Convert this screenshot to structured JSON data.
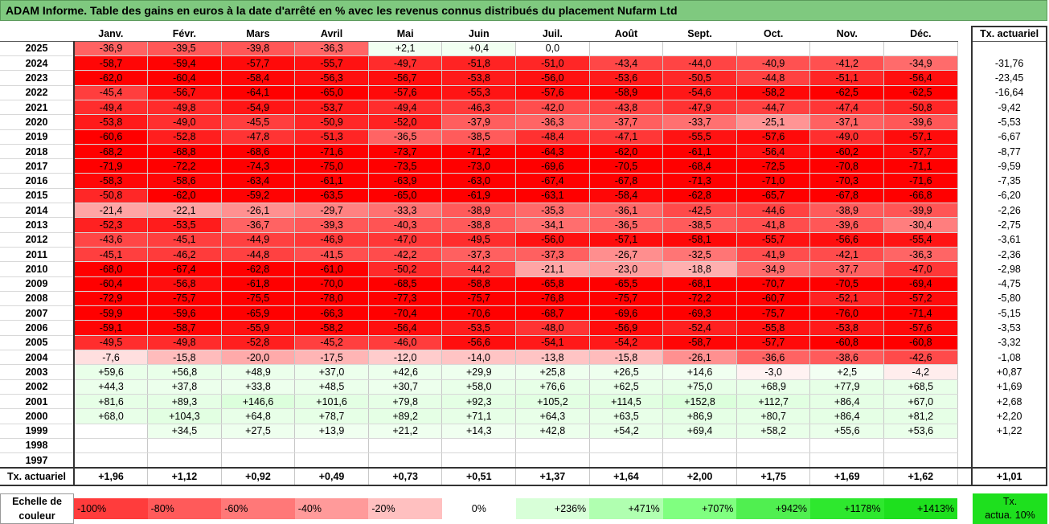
{
  "title": "ADAM Informe. Table des gains en euros à la date d'arrêté en % avec les revenus connus distribués du placement Nufarm Ltd",
  "colors": {
    "title_bg": "#7fc97f",
    "negative": "#ff0000",
    "positive": "#00ee00"
  },
  "chart_data": {
    "type": "heatmap",
    "months": [
      "Janv.",
      "Févr.",
      "Mars",
      "Avril",
      "Mai",
      "Juin",
      "Juil.",
      "Août",
      "Sept.",
      "Oct.",
      "Nov.",
      "Déc."
    ],
    "actuarial_header": "Tx. actuariel",
    "rows": [
      {
        "year": "2025",
        "values": [
          "-36,9",
          "-39,5",
          "-39,8",
          "-36,3",
          "+2,1",
          "+0,4",
          "0,0",
          "",
          "",
          "",
          "",
          ""
        ],
        "actuarial": ""
      },
      {
        "year": "2024",
        "values": [
          "-58,7",
          "-59,4",
          "-57,7",
          "-55,7",
          "-49,7",
          "-51,8",
          "-51,0",
          "-43,4",
          "-44,0",
          "-40,9",
          "-41,2",
          "-34,9"
        ],
        "actuarial": "-31,76"
      },
      {
        "year": "2023",
        "values": [
          "-62,0",
          "-60,4",
          "-58,4",
          "-56,3",
          "-56,7",
          "-53,8",
          "-56,0",
          "-53,6",
          "-50,5",
          "-44,8",
          "-51,1",
          "-56,4"
        ],
        "actuarial": "-23,45"
      },
      {
        "year": "2022",
        "values": [
          "-45,4",
          "-56,7",
          "-64,1",
          "-65,0",
          "-57,6",
          "-55,3",
          "-57,6",
          "-58,9",
          "-54,6",
          "-58,2",
          "-62,5",
          "-62,5"
        ],
        "actuarial": "-16,64"
      },
      {
        "year": "2021",
        "values": [
          "-49,4",
          "-49,8",
          "-54,9",
          "-53,7",
          "-49,4",
          "-46,3",
          "-42,0",
          "-43,8",
          "-47,9",
          "-44,7",
          "-47,4",
          "-50,8"
        ],
        "actuarial": "-9,42"
      },
      {
        "year": "2020",
        "values": [
          "-53,8",
          "-49,0",
          "-45,5",
          "-50,9",
          "-52,0",
          "-37,9",
          "-36,3",
          "-37,7",
          "-33,7",
          "-25,1",
          "-37,1",
          "-39,6"
        ],
        "actuarial": "-5,53"
      },
      {
        "year": "2019",
        "values": [
          "-60,6",
          "-52,8",
          "-47,8",
          "-51,3",
          "-36,5",
          "-38,5",
          "-48,4",
          "-47,1",
          "-55,5",
          "-57,6",
          "-49,0",
          "-57,1"
        ],
        "actuarial": "-6,67"
      },
      {
        "year": "2018",
        "values": [
          "-68,2",
          "-68,8",
          "-68,6",
          "-71,6",
          "-73,7",
          "-71,2",
          "-64,3",
          "-62,0",
          "-61,1",
          "-56,4",
          "-60,2",
          "-57,7"
        ],
        "actuarial": "-8,77"
      },
      {
        "year": "2017",
        "values": [
          "-71,9",
          "-72,2",
          "-74,3",
          "-75,0",
          "-73,5",
          "-73,0",
          "-69,6",
          "-70,5",
          "-68,4",
          "-72,5",
          "-70,8",
          "-71,1"
        ],
        "actuarial": "-9,59"
      },
      {
        "year": "2016",
        "values": [
          "-58,3",
          "-58,6",
          "-63,4",
          "-61,1",
          "-63,9",
          "-63,0",
          "-67,4",
          "-67,8",
          "-71,3",
          "-71,0",
          "-70,3",
          "-71,6"
        ],
        "actuarial": "-7,35"
      },
      {
        "year": "2015",
        "values": [
          "-50,8",
          "-62,0",
          "-59,2",
          "-63,5",
          "-65,0",
          "-61,9",
          "-63,1",
          "-58,4",
          "-62,8",
          "-65,7",
          "-67,8",
          "-66,8"
        ],
        "actuarial": "-6,20"
      },
      {
        "year": "2014",
        "values": [
          "-21,4",
          "-22,1",
          "-26,1",
          "-29,7",
          "-33,3",
          "-38,9",
          "-35,3",
          "-36,1",
          "-42,5",
          "-44,6",
          "-38,9",
          "-39,9"
        ],
        "actuarial": "-2,26"
      },
      {
        "year": "2013",
        "values": [
          "-52,3",
          "-53,5",
          "-36,7",
          "-39,3",
          "-40,3",
          "-38,8",
          "-34,1",
          "-36,5",
          "-38,5",
          "-41,8",
          "-39,6",
          "-30,4"
        ],
        "actuarial": "-2,75"
      },
      {
        "year": "2012",
        "values": [
          "-43,6",
          "-45,1",
          "-44,9",
          "-46,9",
          "-47,0",
          "-49,5",
          "-56,0",
          "-57,1",
          "-58,1",
          "-55,7",
          "-56,6",
          "-55,4"
        ],
        "actuarial": "-3,61"
      },
      {
        "year": "2011",
        "values": [
          "-45,1",
          "-46,2",
          "-44,8",
          "-41,5",
          "-42,2",
          "-37,3",
          "-37,3",
          "-26,7",
          "-32,5",
          "-41,9",
          "-42,1",
          "-36,3"
        ],
        "actuarial": "-2,36"
      },
      {
        "year": "2010",
        "values": [
          "-68,0",
          "-67,4",
          "-62,8",
          "-61,0",
          "-50,2",
          "-44,2",
          "-21,1",
          "-23,0",
          "-18,8",
          "-34,9",
          "-37,7",
          "-47,0"
        ],
        "actuarial": "-2,98"
      },
      {
        "year": "2009",
        "values": [
          "-60,4",
          "-56,8",
          "-61,8",
          "-70,0",
          "-68,5",
          "-58,8",
          "-65,8",
          "-65,5",
          "-68,1",
          "-70,7",
          "-70,5",
          "-69,4"
        ],
        "actuarial": "-4,75"
      },
      {
        "year": "2008",
        "values": [
          "-72,9",
          "-75,7",
          "-75,5",
          "-78,0",
          "-77,3",
          "-75,7",
          "-76,8",
          "-75,7",
          "-72,2",
          "-60,7",
          "-52,1",
          "-57,2"
        ],
        "actuarial": "-5,80"
      },
      {
        "year": "2007",
        "values": [
          "-59,9",
          "-59,6",
          "-65,9",
          "-66,3",
          "-70,4",
          "-70,6",
          "-68,7",
          "-69,6",
          "-69,3",
          "-75,7",
          "-76,0",
          "-71,4"
        ],
        "actuarial": "-5,15"
      },
      {
        "year": "2006",
        "values": [
          "-59,1",
          "-58,7",
          "-55,9",
          "-58,2",
          "-56,4",
          "-53,5",
          "-48,0",
          "-56,9",
          "-52,4",
          "-55,8",
          "-53,8",
          "-57,6"
        ],
        "actuarial": "-3,53"
      },
      {
        "year": "2005",
        "values": [
          "-49,5",
          "-49,8",
          "-52,8",
          "-45,2",
          "-46,0",
          "-56,6",
          "-54,1",
          "-54,2",
          "-58,7",
          "-57,7",
          "-60,8",
          "-60,8"
        ],
        "actuarial": "-3,32"
      },
      {
        "year": "2004",
        "values": [
          "-7,6",
          "-15,8",
          "-20,0",
          "-17,5",
          "-12,0",
          "-14,0",
          "-13,8",
          "-15,8",
          "-26,1",
          "-36,6",
          "-38,6",
          "-42,6"
        ],
        "actuarial": "-1,08"
      },
      {
        "year": "2003",
        "values": [
          "+59,6",
          "+56,8",
          "+48,9",
          "+37,0",
          "+42,6",
          "+29,9",
          "+25,8",
          "+26,5",
          "+14,6",
          "-3,0",
          "+2,5",
          "-4,2"
        ],
        "actuarial": "+0,87"
      },
      {
        "year": "2002",
        "values": [
          "+44,3",
          "+37,8",
          "+33,8",
          "+48,5",
          "+30,7",
          "+58,0",
          "+76,6",
          "+62,5",
          "+75,0",
          "+68,9",
          "+77,9",
          "+68,5"
        ],
        "actuarial": "+1,69"
      },
      {
        "year": "2001",
        "values": [
          "+81,6",
          "+89,3",
          "+146,6",
          "+101,6",
          "+79,8",
          "+92,3",
          "+105,2",
          "+114,5",
          "+152,8",
          "+112,7",
          "+86,4",
          "+67,0"
        ],
        "actuarial": "+2,68"
      },
      {
        "year": "2000",
        "values": [
          "+68,0",
          "+104,3",
          "+64,8",
          "+78,7",
          "+89,2",
          "+71,1",
          "+64,3",
          "+63,5",
          "+86,9",
          "+80,7",
          "+86,4",
          "+81,2"
        ],
        "actuarial": "+2,20"
      },
      {
        "year": "1999",
        "values": [
          "",
          "+34,5",
          "+27,5",
          "+13,9",
          "+21,2",
          "+14,3",
          "+42,8",
          "+54,2",
          "+69,4",
          "+58,2",
          "+55,6",
          "+53,6"
        ],
        "actuarial": "+1,22"
      },
      {
        "year": "1998",
        "values": [
          "",
          "",
          "",
          "",
          "",
          "",
          "",
          "",
          "",
          "",
          "",
          ""
        ],
        "actuarial": ""
      },
      {
        "year": "1997",
        "values": [
          "",
          "",
          "",
          "",
          "",
          "",
          "",
          "",
          "",
          "",
          "",
          ""
        ],
        "actuarial": ""
      }
    ],
    "footer": {
      "label": "Tx. actuariel",
      "values": [
        "+1,96",
        "+1,12",
        "+0,92",
        "+0,49",
        "+0,73",
        "+0,51",
        "+1,37",
        "+1,64",
        "+2,00",
        "+1,75",
        "+1,69",
        "+1,62"
      ],
      "total": "+1,01"
    },
    "scale": {
      "label_line1": "Echelle de",
      "label_line2": "couleur",
      "steps": [
        {
          "label": "-100%",
          "color": "#ff3c3c"
        },
        {
          "label": "-80%",
          "color": "#ff5a5a"
        },
        {
          "label": "-60%",
          "color": "#ff7878"
        },
        {
          "label": "-40%",
          "color": "#ff9a9a"
        },
        {
          "label": "-20%",
          "color": "#ffc0c0"
        },
        {
          "label": "0%",
          "color": "#ffffff"
        },
        {
          "label": "+236%",
          "color": "#d8ffd8"
        },
        {
          "label": "+471%",
          "color": "#b0ffb0"
        },
        {
          "label": "+707%",
          "color": "#80ff80"
        },
        {
          "label": "+942%",
          "color": "#50ef50"
        },
        {
          "label": "+1178%",
          "color": "#2ee82e"
        },
        {
          "label": "+1413%",
          "color": "#1ee01e"
        }
      ],
      "actuarial_line1": "Tx.",
      "actuarial_line2": "actua. 10%"
    }
  }
}
